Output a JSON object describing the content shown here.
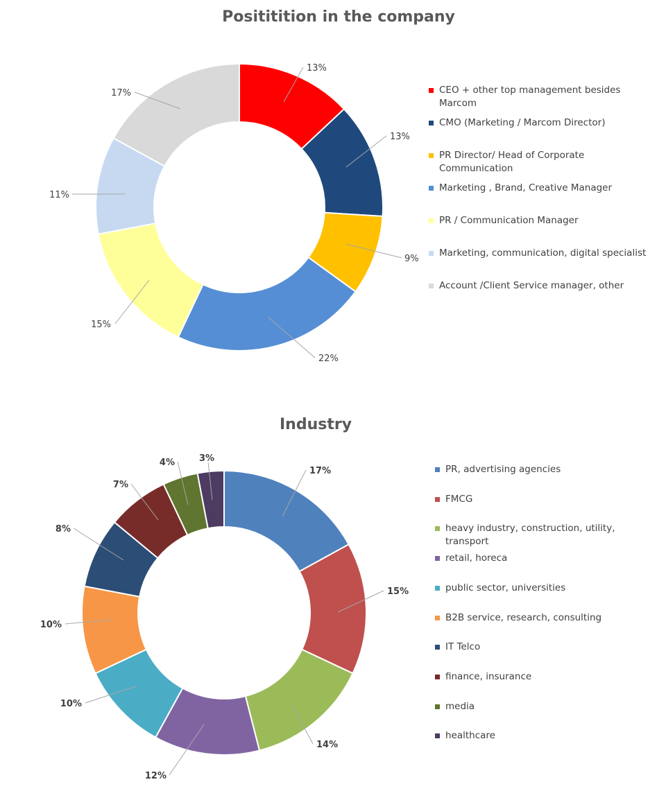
{
  "chart_data": [
    {
      "type": "donut",
      "title": "Posititition in the company",
      "categories": [
        "CEO + other top management besides Marcom",
        "CMO (Marketing / Marcom Director)",
        "PR Director/ Head of  Corporate Communication",
        "Marketing , Brand, Creative  Manager",
        "PR / Communication Manager",
        "Marketing, communication, digital specialist",
        "Account /Client Service manager, other"
      ],
      "values": [
        13,
        13,
        9,
        22,
        15,
        11,
        17
      ],
      "data_labels": [
        "13%",
        "13%",
        "9%",
        "22%",
        "15%",
        "11%",
        "17%"
      ],
      "colors": [
        "#ff0000",
        "#1f497d",
        "#ffc000",
        "#558ed5",
        "#ffff99",
        "#c6d9f1",
        "#d9d9d9"
      ],
      "legend_position": "right",
      "label_style": "normal"
    },
    {
      "type": "donut",
      "title": "Industry",
      "categories": [
        "PR, advertising agencies",
        "FMCG",
        "heavy industry, construction, utility, transport",
        "retail, horeca",
        "public sector, universities",
        "B2B service, research, consulting",
        "IT Telco",
        "finance, insurance",
        "media",
        "healthcare"
      ],
      "values": [
        17,
        15,
        14,
        12,
        10,
        10,
        8,
        7,
        4,
        3
      ],
      "data_labels": [
        "17%",
        "15%",
        "14%",
        "12%",
        "10%",
        "10%",
        "8%",
        "7%",
        "4%",
        "3%"
      ],
      "colors": [
        "#4f81bd",
        "#c0504d",
        "#9bbb59",
        "#8064a2",
        "#4bacc6",
        "#f79646",
        "#2c4d75",
        "#772c2a",
        "#5f7530",
        "#4d3b62"
      ],
      "legend_position": "right",
      "label_style": "bold"
    }
  ]
}
